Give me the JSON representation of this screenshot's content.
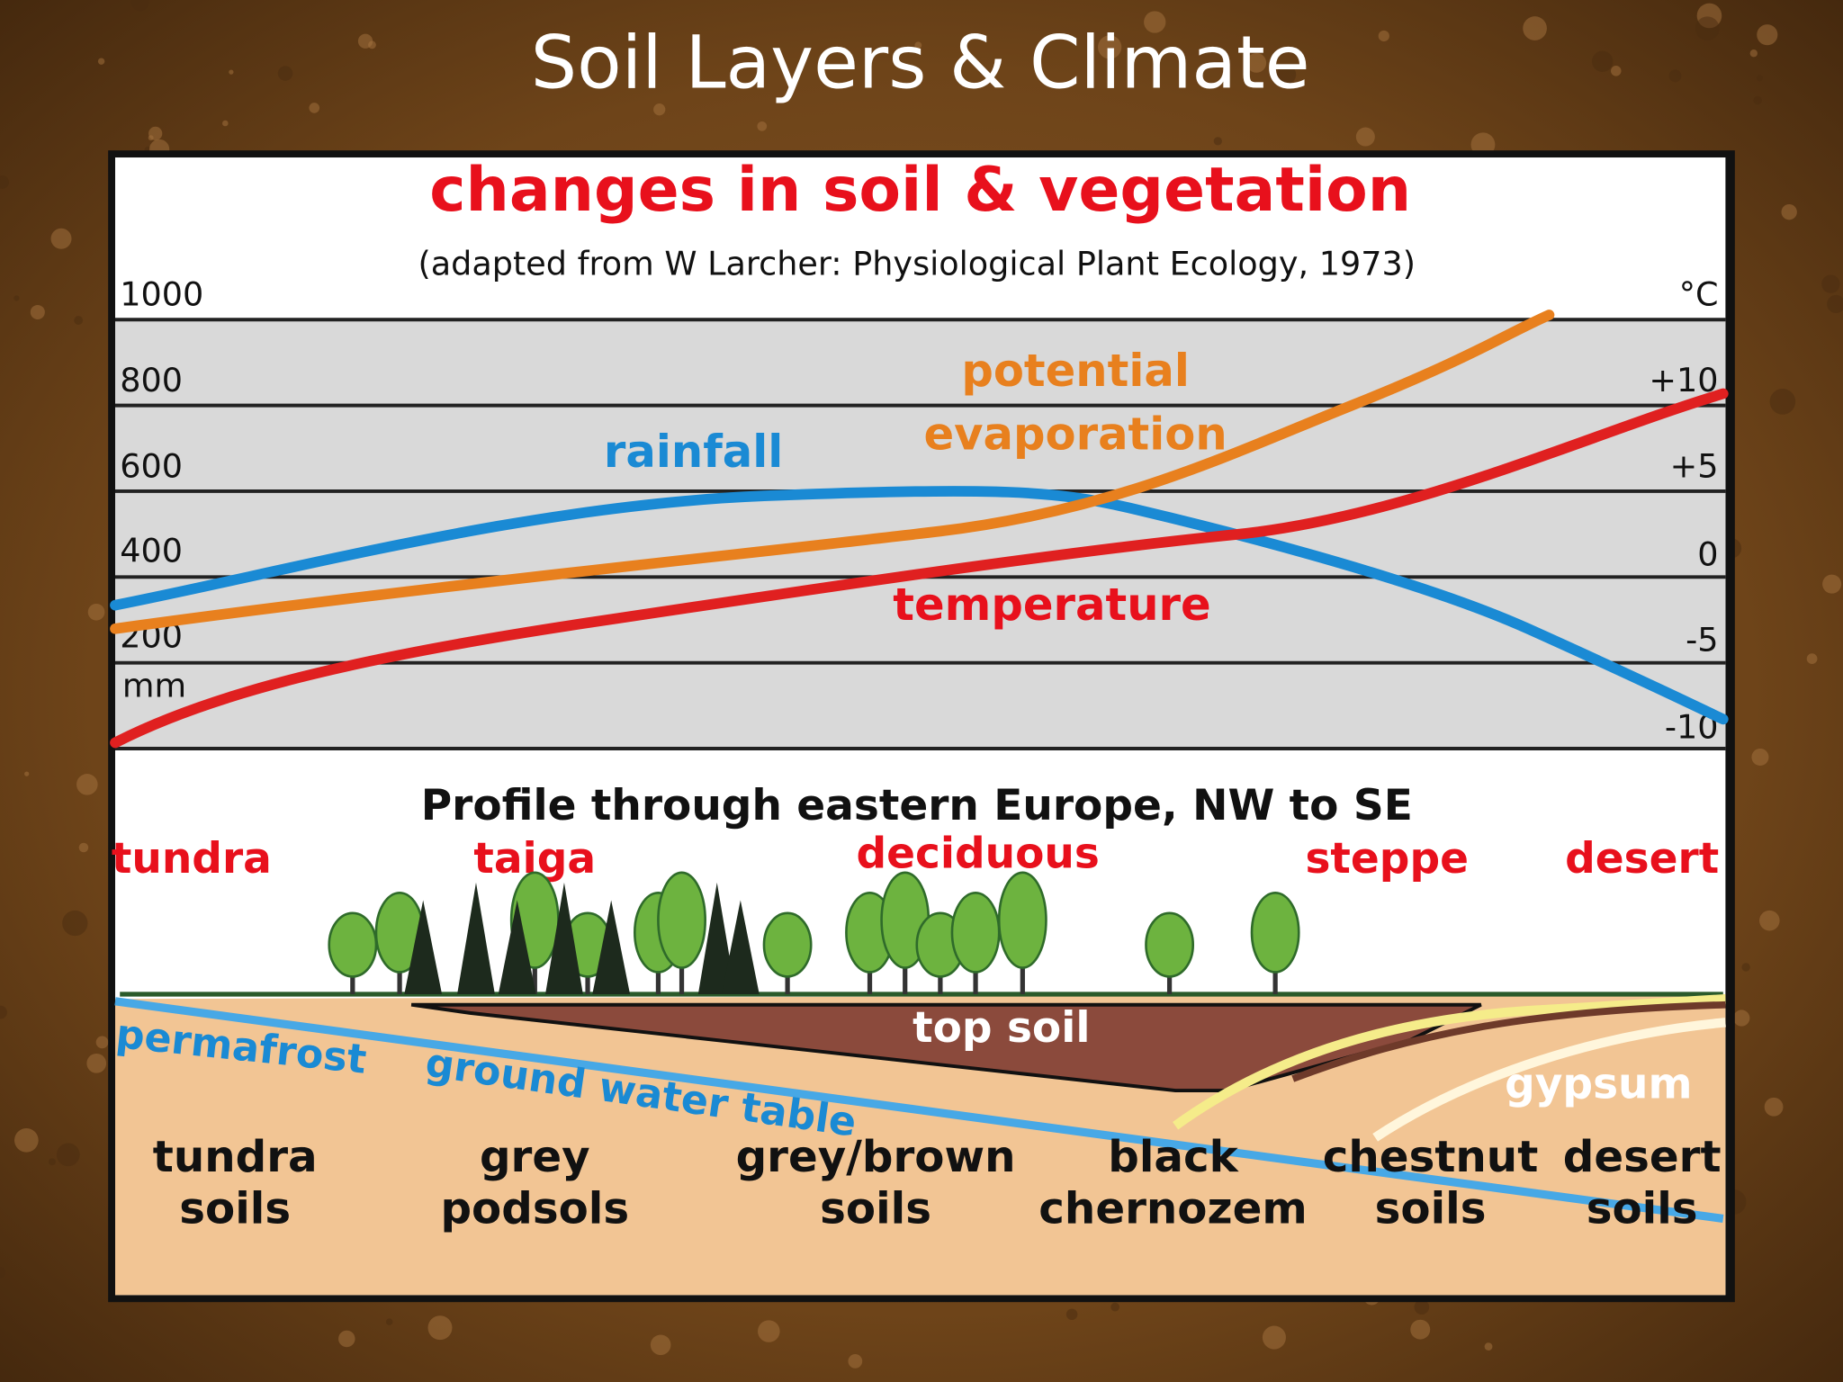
{
  "slide": {
    "title": "Soil Layers & Climate"
  },
  "diagram": {
    "title": "changes in soil & vegetation",
    "subtitle": "(adapted from W Larcher: Physiological Plant Ecology, 1973)",
    "left_axis": {
      "labels": [
        "1000",
        "800",
        "600",
        "400",
        "200"
      ],
      "unit": "mm"
    },
    "right_axis": {
      "unit": "°C",
      "labels": [
        "+10",
        "+5",
        "0",
        "-5",
        "-10"
      ]
    },
    "curves": {
      "rainfall": "rainfall",
      "evaporation": [
        "potential",
        "evaporation"
      ],
      "temperature": "temperature"
    },
    "profile_title": "Profile through eastern Europe, NW to SE",
    "biomes": [
      "tundra",
      "taiga",
      "deciduous",
      "steppe",
      "desert"
    ],
    "layers": {
      "top_soil": "top soil",
      "permafrost": "permafrost",
      "ground_water": "ground water table",
      "gypsum": "gypsum"
    },
    "soils": [
      [
        "tundra",
        "soils"
      ],
      [
        "grey",
        "podsols"
      ],
      [
        "grey/brown",
        "soils"
      ],
      [
        "black",
        "chernozem"
      ],
      [
        "chestnut",
        "soils"
      ],
      [
        "desert",
        "soils"
      ]
    ]
  }
}
